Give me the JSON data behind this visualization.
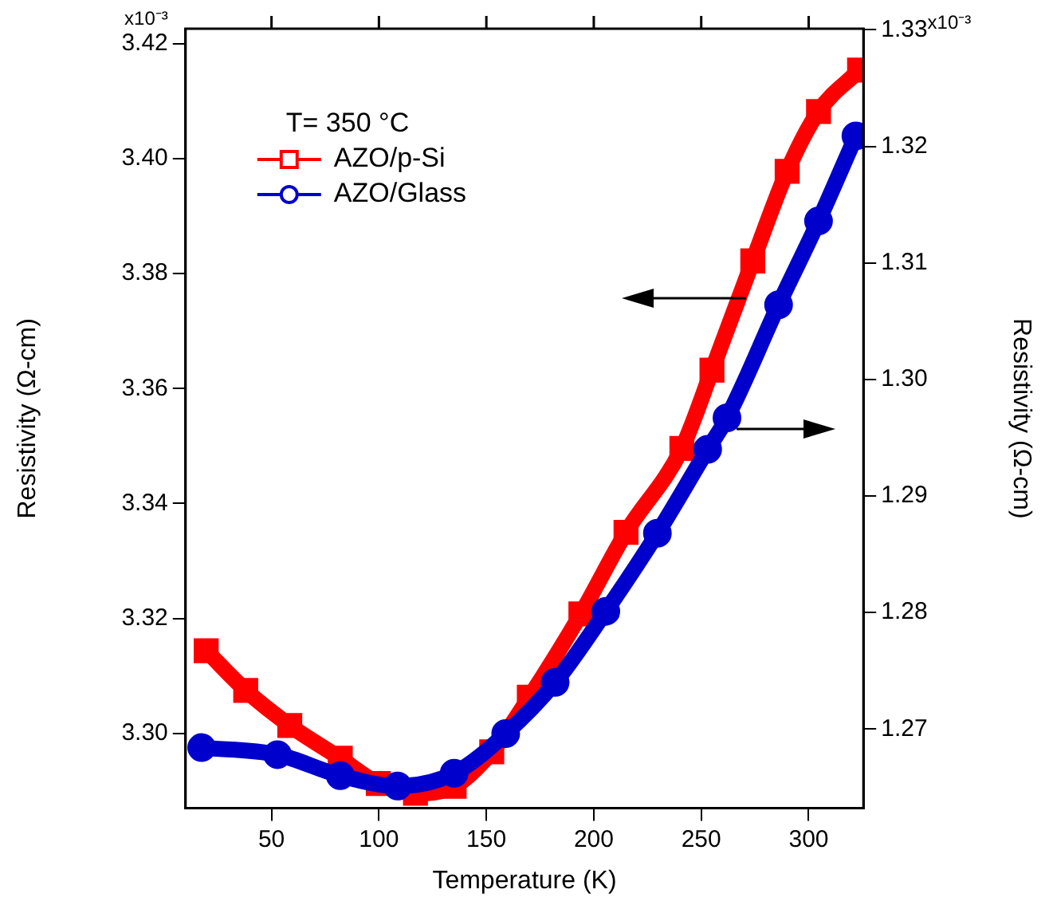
{
  "chart_data": {
    "type": "line",
    "xlabel": "Temperature (K)",
    "ylabel": "Resistivity (Ω-cm)",
    "y2label": "Resistivity (Ω-cm)",
    "legend_title": "T= 350 °C",
    "legend": "top left",
    "grid": false,
    "line_style": "solid",
    "annotations": [
      "x10⁻³",
      "x10⁻³"
    ],
    "xlim": [
      10,
      325.5
    ],
    "xticks": [
      50,
      100,
      150,
      200,
      250,
      300
    ],
    "ylim": [
      3.287,
      3.4226
    ],
    "yticks": [
      {
        "value": 3.3,
        "label": "3.30"
      },
      3.32,
      3.34,
      3.36,
      3.38,
      {
        "value": 3.4,
        "label": "3.40"
      },
      3.42
    ],
    "y2lim": [
      1.2632,
      1.3301
    ],
    "y2ticks": [
      1.27,
      1.28,
      1.29,
      {
        "value": 1.3,
        "label": "1.30"
      },
      1.31,
      1.32,
      1.33
    ],
    "series": [
      {
        "name": "AZO/p-Si",
        "color": "#ff0000",
        "marker": "square",
        "x": [
          19.6,
          38,
          58.5,
          82,
          99.7,
          117,
          135,
          152.5,
          170,
          194,
          215,
          241,
          255,
          274,
          290,
          304.6,
          323.7
        ],
        "values": [
          3.3144,
          3.3075,
          3.3014,
          3.2957,
          3.2913,
          3.2896,
          3.2908,
          3.2968,
          3.3063,
          3.3208,
          3.335,
          3.3496,
          3.3632,
          3.3822,
          3.3978,
          3.4082,
          3.4154
        ]
      },
      {
        "name": "AZO/Glass",
        "color": "#0000cc",
        "marker": "circle",
        "axis": "y2",
        "x": [
          17.5,
          52.8,
          82,
          108.7,
          135,
          159,
          182,
          205.6,
          229.6,
          253,
          262,
          286,
          304.6,
          322
        ],
        "values": [
          1.2684,
          1.2678,
          1.266,
          1.2651,
          1.2662,
          1.2696,
          1.274,
          1.2801,
          1.2868,
          1.294,
          1.2967,
          1.3064,
          1.3136,
          1.3209
        ]
      }
    ]
  }
}
